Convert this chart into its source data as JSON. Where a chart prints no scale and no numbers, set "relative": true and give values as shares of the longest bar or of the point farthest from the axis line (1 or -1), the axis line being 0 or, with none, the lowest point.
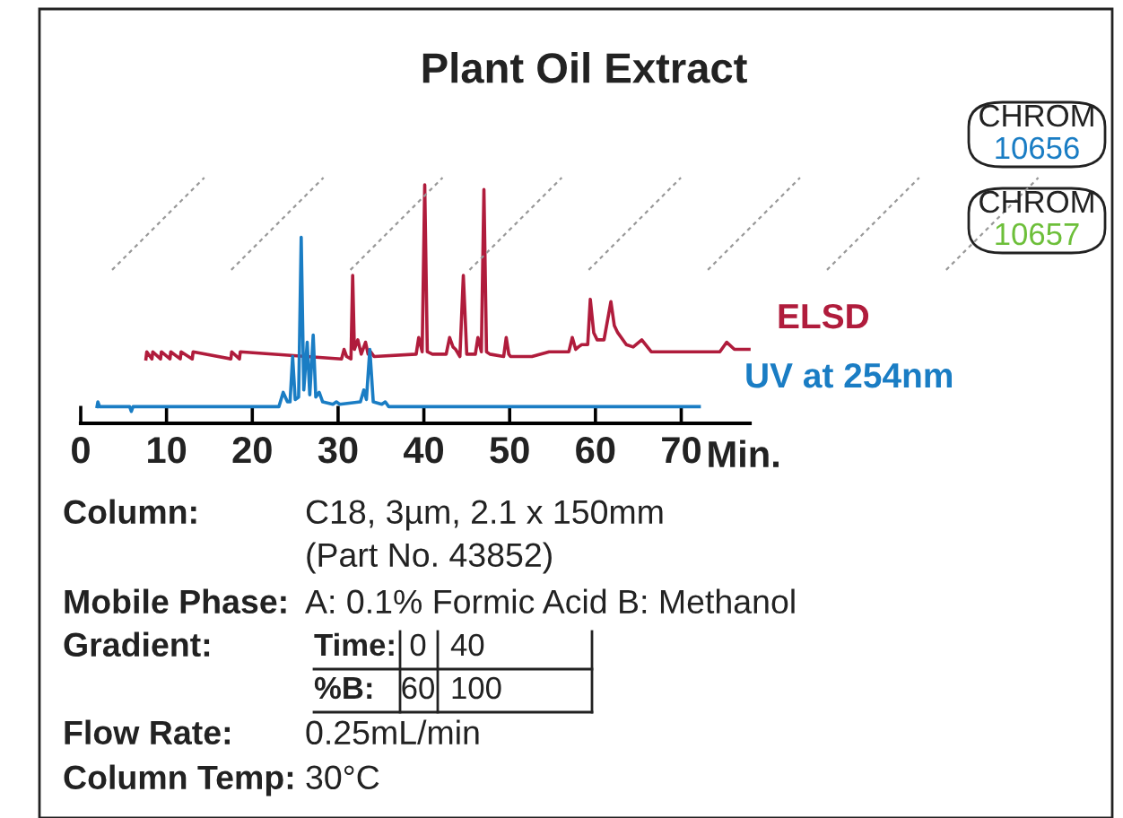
{
  "chart_data": {
    "type": "line",
    "title": "Plant Oil Extract",
    "xlabel": "Min.",
    "relative": true,
    "xlim": [
      0,
      78
    ],
    "xticks": [
      0,
      10,
      20,
      30,
      40,
      50,
      60,
      70
    ],
    "grid": false,
    "legend": false,
    "marker": "none",
    "line_style": "solid",
    "series": [
      {
        "name": "ELSD",
        "color": "#b01c3c",
        "x": [
          7.6,
          7.7,
          8.3,
          8.4,
          9.3,
          9.4,
          10.4,
          10.5,
          11.6,
          11.7,
          13.0,
          13.1,
          17.5,
          17.6,
          18.5,
          18.6,
          30.4,
          30.7,
          31.0,
          31.5,
          31.7,
          31.9,
          32.3,
          32.7,
          33.2,
          33.5,
          33.8,
          34.2,
          39.1,
          39.4,
          39.8,
          40.1,
          40.4,
          41.0,
          42.6,
          43.0,
          43.4,
          43.7,
          44.2,
          44.6,
          45.0,
          45.3,
          46.0,
          46.3,
          46.7,
          47.0,
          47.3,
          47.7,
          49.3,
          49.6,
          49.9,
          50.1,
          52.6,
          54.6,
          56.9,
          57.3,
          57.7,
          58.0,
          58.4,
          58.7,
          59.1,
          59.4,
          59.8,
          60.2,
          61.0,
          61.8,
          62.2,
          62.6,
          63.6,
          64.4,
          65.4,
          66.5,
          68.5,
          74.5,
          75.3,
          76.2,
          77.9
        ],
        "values": [
          0.27,
          0.3,
          0.27,
          0.3,
          0.27,
          0.3,
          0.27,
          0.3,
          0.27,
          0.3,
          0.27,
          0.3,
          0.27,
          0.3,
          0.27,
          0.3,
          0.27,
          0.31,
          0.28,
          0.27,
          0.62,
          0.31,
          0.35,
          0.29,
          0.34,
          0.29,
          0.3,
          0.28,
          0.29,
          0.36,
          0.3,
          1.0,
          0.3,
          0.29,
          0.29,
          0.36,
          0.32,
          0.31,
          0.28,
          0.62,
          0.29,
          0.29,
          0.29,
          0.36,
          0.3,
          0.98,
          0.3,
          0.29,
          0.28,
          0.36,
          0.29,
          0.28,
          0.28,
          0.3,
          0.3,
          0.36,
          0.31,
          0.32,
          0.33,
          0.33,
          0.33,
          0.52,
          0.38,
          0.35,
          0.35,
          0.51,
          0.41,
          0.38,
          0.33,
          0.32,
          0.35,
          0.3,
          0.3,
          0.3,
          0.34,
          0.31,
          0.31
        ]
      },
      {
        "name": "UV at 254nm",
        "color": "#1a7dc4",
        "x": [
          1.9,
          2.0,
          2.2,
          5.7,
          5.9,
          6.1,
          23.1,
          23.6,
          24.1,
          24.4,
          24.7,
          25.0,
          25.4,
          25.7,
          26.0,
          26.4,
          26.7,
          27.1,
          27.4,
          27.8,
          28.2,
          29.4,
          29.8,
          30.2,
          32.6,
          33.0,
          33.3,
          33.7,
          34.1,
          35.1,
          35.5,
          35.9,
          72.1
        ],
        "values": [
          0.07,
          0.09,
          0.07,
          0.07,
          0.05,
          0.07,
          0.07,
          0.13,
          0.09,
          0.09,
          0.28,
          0.1,
          0.11,
          0.78,
          0.14,
          0.34,
          0.12,
          0.37,
          0.11,
          0.13,
          0.09,
          0.08,
          0.09,
          0.08,
          0.09,
          0.14,
          0.1,
          0.31,
          0.09,
          0.08,
          0.09,
          0.07,
          0.07
        ]
      }
    ],
    "annotations": [
      "Column:",
      "C18, 3µm, 2.1 x 150mm",
      "(Part No. 43852)",
      "Mobile Phase:",
      "A: 0.1% Formic Acid B: Methanol",
      "Gradient:",
      "Time:",
      "0",
      "40",
      "%B:",
      "60",
      "100",
      "Flow Rate:",
      "0.25mL/min",
      "Column Temp:",
      "30°C",
      "CHROM",
      "10656",
      "CHROM",
      "10657"
    ]
  }
}
